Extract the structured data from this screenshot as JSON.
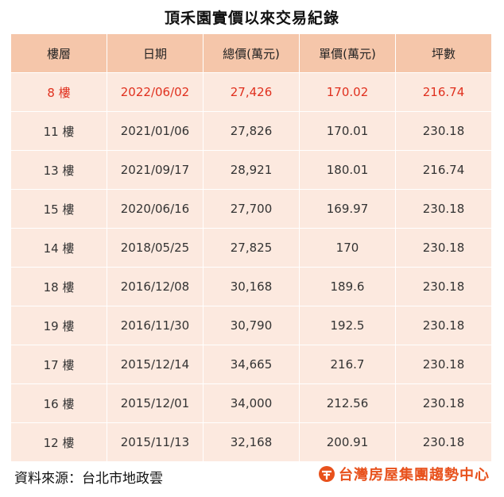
{
  "title": "頂禾園實價以來交易紀錄",
  "table": {
    "headers": [
      "樓層",
      "日期",
      "總價(萬元)",
      "單價(萬元)",
      "坪數"
    ],
    "rows": [
      [
        "8 樓",
        "2022/06/02",
        "27,426",
        "170.02",
        "216.74"
      ],
      [
        "11 樓",
        "2021/01/06",
        "27,826",
        "170.01",
        "230.18"
      ],
      [
        "13 樓",
        "2021/09/17",
        "28,921",
        "180.01",
        "216.74"
      ],
      [
        "15 樓",
        "2020/06/16",
        "27,700",
        "169.97",
        "230.18"
      ],
      [
        "14 樓",
        "2018/05/25",
        "27,825",
        "170",
        "230.18"
      ],
      [
        "18 樓",
        "2016/12/08",
        "30,168",
        "189.6",
        "230.18"
      ],
      [
        "19 樓",
        "2016/11/30",
        "30,790",
        "192.5",
        "230.18"
      ],
      [
        "17 樓",
        "2015/12/14",
        "34,665",
        "216.7",
        "230.18"
      ],
      [
        "16 樓",
        "2015/12/01",
        "34,000",
        "212.56",
        "230.18"
      ],
      [
        "12 樓",
        "2015/11/13",
        "32,168",
        "200.91",
        "230.18"
      ]
    ],
    "highlight_row": 0
  },
  "footer": {
    "source": "資料來源：台北市地政雲",
    "brand": "台灣房屋集團趨勢中心",
    "logo_icon": "taiwan-realty-logo-icon"
  },
  "colors": {
    "header_bg": "#f5c6aa",
    "cell_bg": "#fce9df",
    "highlight_text": "#e0301e",
    "brand": "#e8511c"
  }
}
